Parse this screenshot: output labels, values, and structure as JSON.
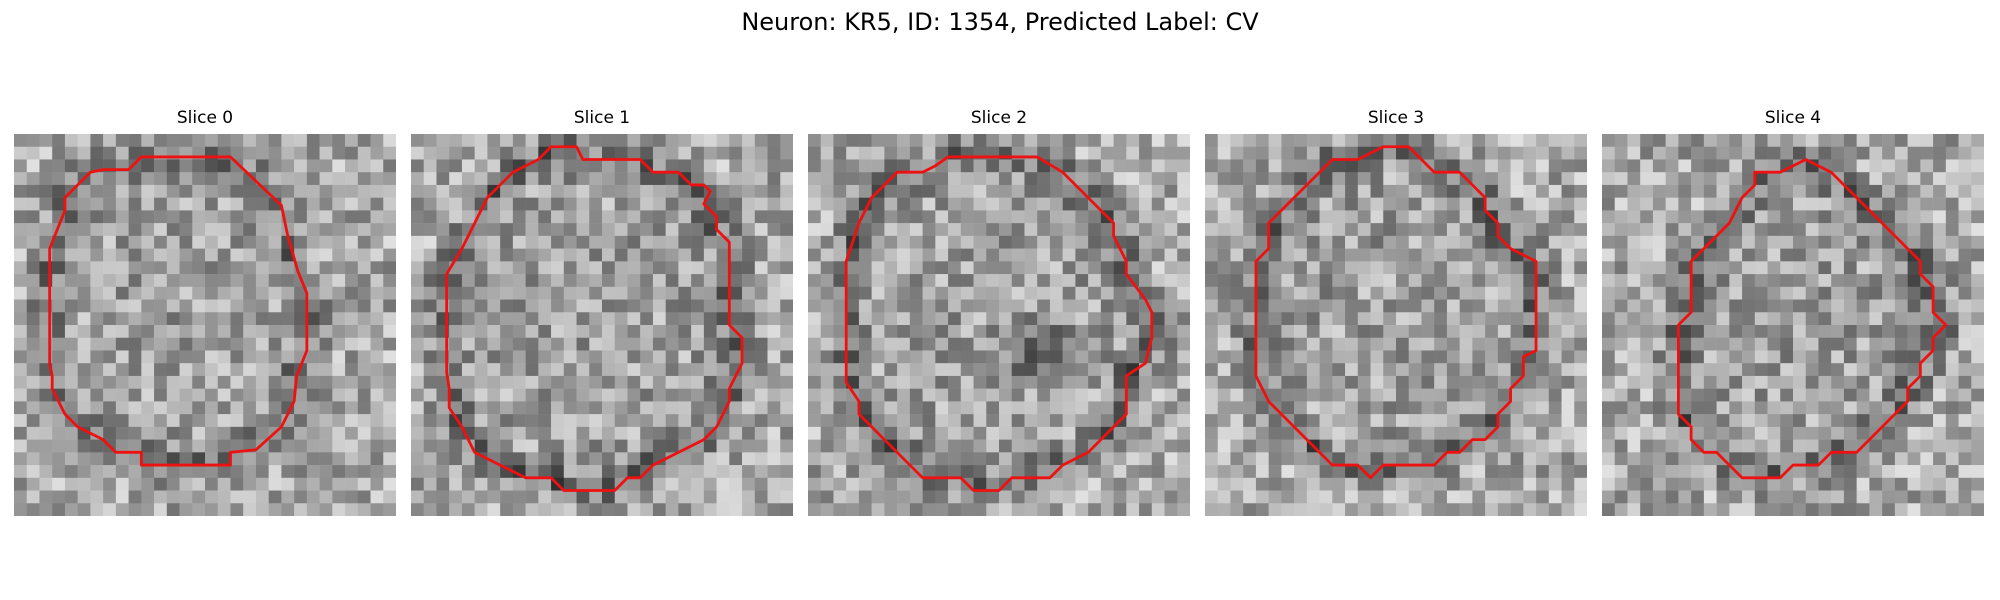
{
  "figure": {
    "title": "Neuron: KR5, ID: 1354, Predicted Label: CV"
  },
  "slices": [
    {
      "title": "Slice 0",
      "grid_size": 30,
      "seed": 11,
      "contour": [
        [
          10,
          1.8
        ],
        [
          17,
          1.8
        ],
        [
          21,
          5.6
        ],
        [
          21.5,
          8
        ],
        [
          22.3,
          10.8
        ],
        [
          23,
          12.5
        ],
        [
          23,
          17
        ],
        [
          22.2,
          19
        ],
        [
          22,
          21
        ],
        [
          21,
          23
        ],
        [
          19,
          24.8
        ],
        [
          17,
          25
        ],
        [
          17,
          26
        ],
        [
          10,
          26
        ],
        [
          10,
          25
        ],
        [
          8,
          25
        ],
        [
          7,
          24
        ],
        [
          5,
          23
        ],
        [
          4,
          22
        ],
        [
          3,
          20
        ],
        [
          3,
          19
        ],
        [
          2.8,
          18
        ],
        [
          2.8,
          15
        ],
        [
          2.8,
          9
        ],
        [
          4,
          6
        ],
        [
          4,
          5
        ],
        [
          5,
          4
        ],
        [
          6,
          3
        ],
        [
          7,
          2.8
        ],
        [
          9,
          2.8
        ]
      ]
    },
    {
      "title": "Slice 1",
      "grid_size": 30,
      "seed": 23,
      "contour": [
        [
          11,
          1
        ],
        [
          13,
          1
        ],
        [
          13.5,
          2
        ],
        [
          15,
          2
        ],
        [
          18,
          2
        ],
        [
          19,
          3
        ],
        [
          21,
          3
        ],
        [
          22,
          4
        ],
        [
          23,
          4
        ],
        [
          23.5,
          4.5
        ],
        [
          23,
          5.5
        ],
        [
          24,
          6.5
        ],
        [
          24,
          7.5
        ],
        [
          25,
          8.5
        ],
        [
          25,
          13
        ],
        [
          25,
          15
        ],
        [
          26,
          16
        ],
        [
          26,
          18
        ],
        [
          25.5,
          19
        ],
        [
          25,
          20
        ],
        [
          25,
          21
        ],
        [
          24,
          23
        ],
        [
          23,
          24
        ],
        [
          22,
          24.5
        ],
        [
          21,
          25
        ],
        [
          19,
          26
        ],
        [
          18,
          27
        ],
        [
          17,
          27
        ],
        [
          16,
          28
        ],
        [
          12,
          28
        ],
        [
          11,
          27
        ],
        [
          9,
          27
        ],
        [
          7,
          26
        ],
        [
          5,
          25
        ],
        [
          4,
          23
        ],
        [
          3,
          21.5
        ],
        [
          3,
          20
        ],
        [
          2.8,
          18.7
        ],
        [
          2.8,
          16
        ],
        [
          2.8,
          11
        ],
        [
          4,
          9
        ],
        [
          5,
          7
        ],
        [
          6,
          5
        ],
        [
          7,
          4
        ],
        [
          8,
          3
        ],
        [
          10,
          2
        ]
      ]
    },
    {
      "title": "Slice 2",
      "grid_size": 30,
      "seed": 37,
      "contour": [
        [
          11,
          1.8
        ],
        [
          18,
          1.8
        ],
        [
          20,
          3
        ],
        [
          21,
          4
        ],
        [
          22,
          5
        ],
        [
          23,
          6
        ],
        [
          24,
          7
        ],
        [
          24,
          8
        ],
        [
          24.5,
          9
        ],
        [
          25,
          10
        ],
        [
          25,
          11
        ],
        [
          26.5,
          13
        ],
        [
          27,
          14
        ],
        [
          27,
          16
        ],
        [
          26.5,
          18
        ],
        [
          25,
          19
        ],
        [
          25,
          21
        ],
        [
          25,
          22
        ],
        [
          24,
          23
        ],
        [
          23,
          24
        ],
        [
          22,
          25
        ],
        [
          20,
          26
        ],
        [
          19,
          27
        ],
        [
          16,
          27
        ],
        [
          15,
          28
        ],
        [
          13,
          28
        ],
        [
          12,
          27
        ],
        [
          9,
          27
        ],
        [
          8,
          26
        ],
        [
          7,
          25
        ],
        [
          5,
          23
        ],
        [
          4,
          22
        ],
        [
          4,
          21
        ],
        [
          3,
          19.5
        ],
        [
          3,
          17
        ],
        [
          3,
          10
        ],
        [
          4,
          7
        ],
        [
          5,
          5
        ],
        [
          6,
          4
        ],
        [
          7,
          3
        ],
        [
          9,
          3
        ],
        [
          10,
          2.5
        ]
      ]
    },
    {
      "title": "Slice 3",
      "grid_size": 30,
      "seed": 51,
      "contour": [
        [
          14,
          1
        ],
        [
          16,
          1
        ],
        [
          17,
          2
        ],
        [
          18,
          3
        ],
        [
          20,
          3
        ],
        [
          21,
          4
        ],
        [
          22,
          5
        ],
        [
          22,
          6
        ],
        [
          23,
          7
        ],
        [
          23,
          8
        ],
        [
          24,
          9
        ],
        [
          26,
          10
        ],
        [
          26,
          17
        ],
        [
          25,
          17.5
        ],
        [
          25,
          19
        ],
        [
          24,
          20
        ],
        [
          24,
          21
        ],
        [
          23,
          22
        ],
        [
          23,
          23
        ],
        [
          22,
          24
        ],
        [
          21,
          24
        ],
        [
          20,
          25
        ],
        [
          19,
          25
        ],
        [
          18,
          26
        ],
        [
          14,
          26
        ],
        [
          13,
          27
        ],
        [
          12,
          26
        ],
        [
          10,
          26
        ],
        [
          9,
          25
        ],
        [
          8,
          24
        ],
        [
          6,
          22
        ],
        [
          5,
          21
        ],
        [
          4,
          19
        ],
        [
          4,
          17
        ],
        [
          4,
          10
        ],
        [
          5,
          9
        ],
        [
          5,
          7
        ],
        [
          6,
          6
        ],
        [
          7,
          5
        ],
        [
          8,
          4
        ],
        [
          9,
          3
        ],
        [
          10,
          2
        ],
        [
          12,
          2
        ]
      ]
    },
    {
      "title": "Slice 4",
      "grid_size": 30,
      "seed": 67,
      "contour": [
        [
          16,
          2
        ],
        [
          18,
          3
        ],
        [
          19,
          4
        ],
        [
          20,
          5
        ],
        [
          21,
          6
        ],
        [
          22,
          7
        ],
        [
          23,
          8
        ],
        [
          24,
          9
        ],
        [
          25,
          10
        ],
        [
          25,
          11
        ],
        [
          26,
          12
        ],
        [
          26,
          13
        ],
        [
          26,
          14
        ],
        [
          27,
          15
        ],
        [
          26,
          16
        ],
        [
          26,
          17
        ],
        [
          25,
          18
        ],
        [
          25,
          19
        ],
        [
          24,
          20
        ],
        [
          24,
          21
        ],
        [
          23,
          22
        ],
        [
          22,
          23
        ],
        [
          21,
          24
        ],
        [
          20,
          25
        ],
        [
          19,
          25
        ],
        [
          18,
          25
        ],
        [
          17,
          26
        ],
        [
          16,
          26
        ],
        [
          15,
          26
        ],
        [
          14,
          27
        ],
        [
          11,
          27
        ],
        [
          10,
          26
        ],
        [
          9,
          25
        ],
        [
          8,
          25
        ],
        [
          7,
          24
        ],
        [
          7,
          23
        ],
        [
          6,
          22
        ],
        [
          6,
          21
        ],
        [
          6,
          19
        ],
        [
          6,
          18
        ],
        [
          6,
          17
        ],
        [
          6,
          15
        ],
        [
          7,
          14
        ],
        [
          7,
          10
        ],
        [
          8,
          9
        ],
        [
          9,
          8
        ],
        [
          10,
          7
        ],
        [
          11,
          5
        ],
        [
          12,
          4
        ],
        [
          12,
          3
        ],
        [
          14,
          3
        ],
        [
          15,
          2.5
        ]
      ]
    }
  ],
  "colors": {
    "contour": "#ee1111",
    "dark": "#111111",
    "light": "#f5f5f5"
  }
}
